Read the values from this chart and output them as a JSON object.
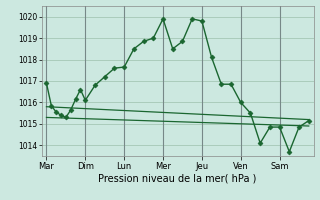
{
  "background_color": "#cce8e0",
  "grid_color": "#aaccbb",
  "line_color": "#1a6630",
  "xlabel": "Pression niveau de la mer( hPa )",
  "ylim": [
    1013.5,
    1020.5
  ],
  "yticks": [
    1014,
    1015,
    1016,
    1017,
    1018,
    1019,
    1020
  ],
  "day_labels": [
    "Mar",
    "Dim",
    "Lun",
    "Mer",
    "Jeu",
    "Ven",
    "Sam"
  ],
  "day_positions": [
    0,
    4,
    8,
    12,
    16,
    20,
    24
  ],
  "xlim": [
    -0.5,
    27.5
  ],
  "series1_x": [
    0,
    0.5,
    1,
    1.5,
    2,
    2.5,
    3,
    3.5,
    4,
    5,
    6,
    7,
    8,
    9,
    10,
    11,
    12,
    13,
    14,
    15,
    16,
    17,
    18,
    19,
    20,
    21,
    22,
    23,
    24,
    25,
    26,
    27
  ],
  "series1_y": [
    1016.9,
    1015.85,
    1015.55,
    1015.4,
    1015.3,
    1015.65,
    1016.15,
    1016.6,
    1016.1,
    1016.8,
    1017.2,
    1017.6,
    1017.65,
    1018.5,
    1018.85,
    1019.0,
    1019.9,
    1018.5,
    1018.85,
    1019.9,
    1019.8,
    1018.1,
    1016.85,
    1016.85,
    1016.0,
    1015.5,
    1014.1,
    1014.85,
    1014.85,
    1013.7,
    1014.85,
    1015.15
  ],
  "series2_x": [
    0,
    27
  ],
  "series2_y": [
    1015.8,
    1015.2
  ],
  "series3_x": [
    0,
    27
  ],
  "series3_y": [
    1015.3,
    1014.9
  ]
}
